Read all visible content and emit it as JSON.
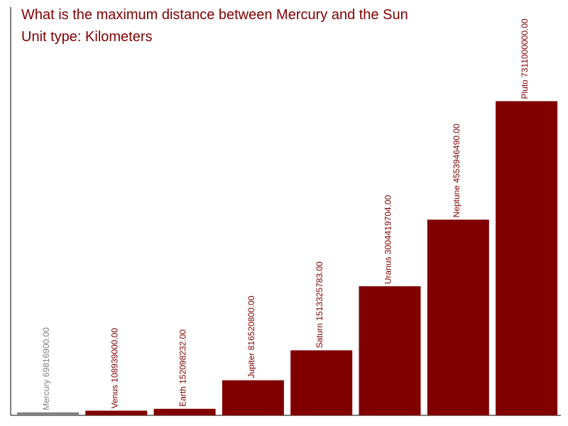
{
  "title": "What is the maximum distance between Mercury and the Sun",
  "subtitle": "Unit type: Kilometers",
  "colors": {
    "text": "#800000",
    "bar": "#800000",
    "highlight": "#808080",
    "axis": "#000000"
  },
  "chart_data": {
    "type": "bar",
    "title": "What is the maximum distance between Mercury and the Sun",
    "subtitle": "Unit type: Kilometers",
    "categories": [
      "Mercury",
      "Venus",
      "Earth",
      "Jupiter",
      "Saturn",
      "Uranus",
      "Neptune",
      "Pluto"
    ],
    "values": [
      69816900.0,
      108939000.0,
      152098232.0,
      816520800.0,
      1513325783.0,
      3004419704.0,
      4553946490.0,
      7311000000.0
    ],
    "value_labels": [
      "69816900.00",
      "108939000.00",
      "152098232.00",
      "816520800.00",
      "1513325783.00",
      "3004419704.00",
      "4553946490.00",
      "7311000000.00"
    ],
    "highlight": "Mercury",
    "ylim": [
      0,
      9500000000
    ],
    "grid": false
  }
}
